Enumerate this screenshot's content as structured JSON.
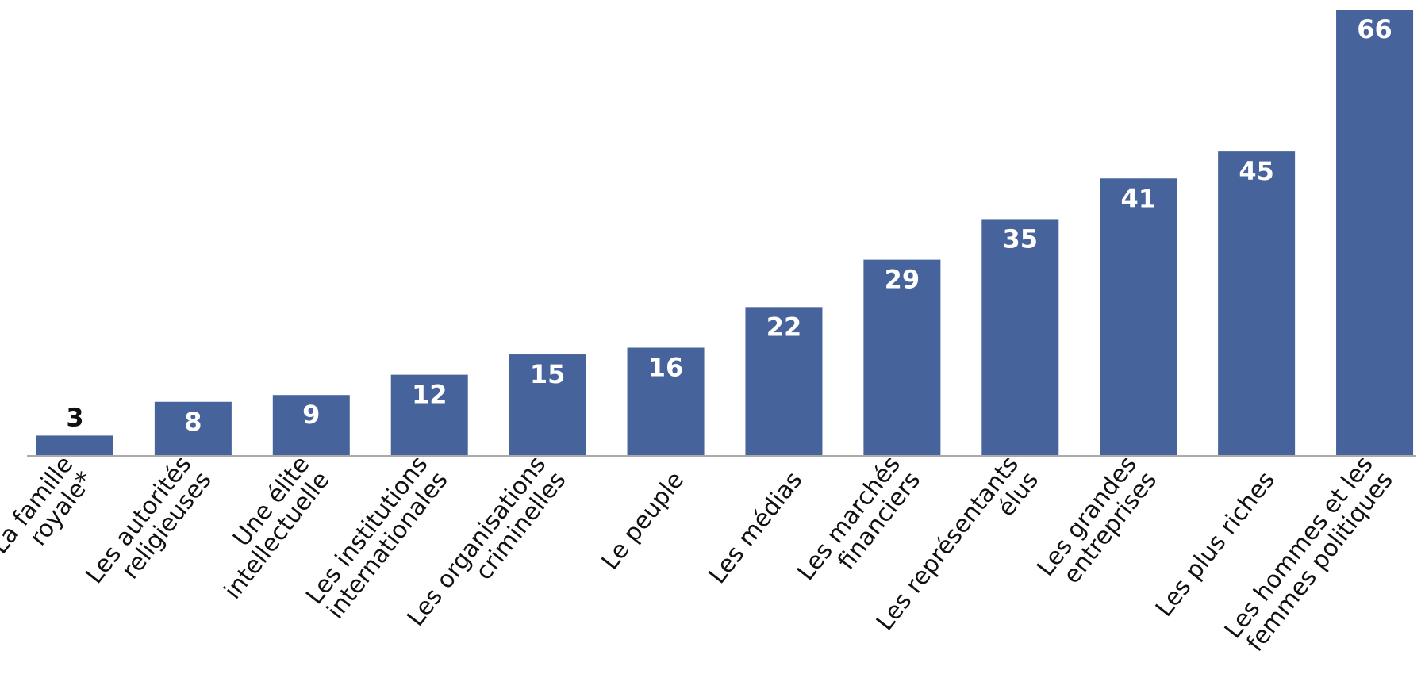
{
  "chart_data": {
    "type": "bar",
    "categories": [
      [
        "La famille",
        "royale*"
      ],
      [
        "Les autorités",
        "religieuses"
      ],
      [
        "Une élite",
        "intellectuelle"
      ],
      [
        "Les institutions",
        "internationales"
      ],
      [
        "Les organisations",
        "criminelles"
      ],
      [
        "Le peuple"
      ],
      [
        "Les médias"
      ],
      [
        "Les marchés",
        "financiers"
      ],
      [
        "Les représentants",
        "élus"
      ],
      [
        "Les grandes",
        "entreprises"
      ],
      [
        "Les plus riches"
      ],
      [
        "Les hommes et les",
        "femmes politiques"
      ]
    ],
    "values": [
      3,
      8,
      9,
      12,
      15,
      16,
      22,
      29,
      35,
      41,
      45,
      66
    ],
    "color": "#46639b",
    "ylim": [
      0,
      66
    ]
  }
}
